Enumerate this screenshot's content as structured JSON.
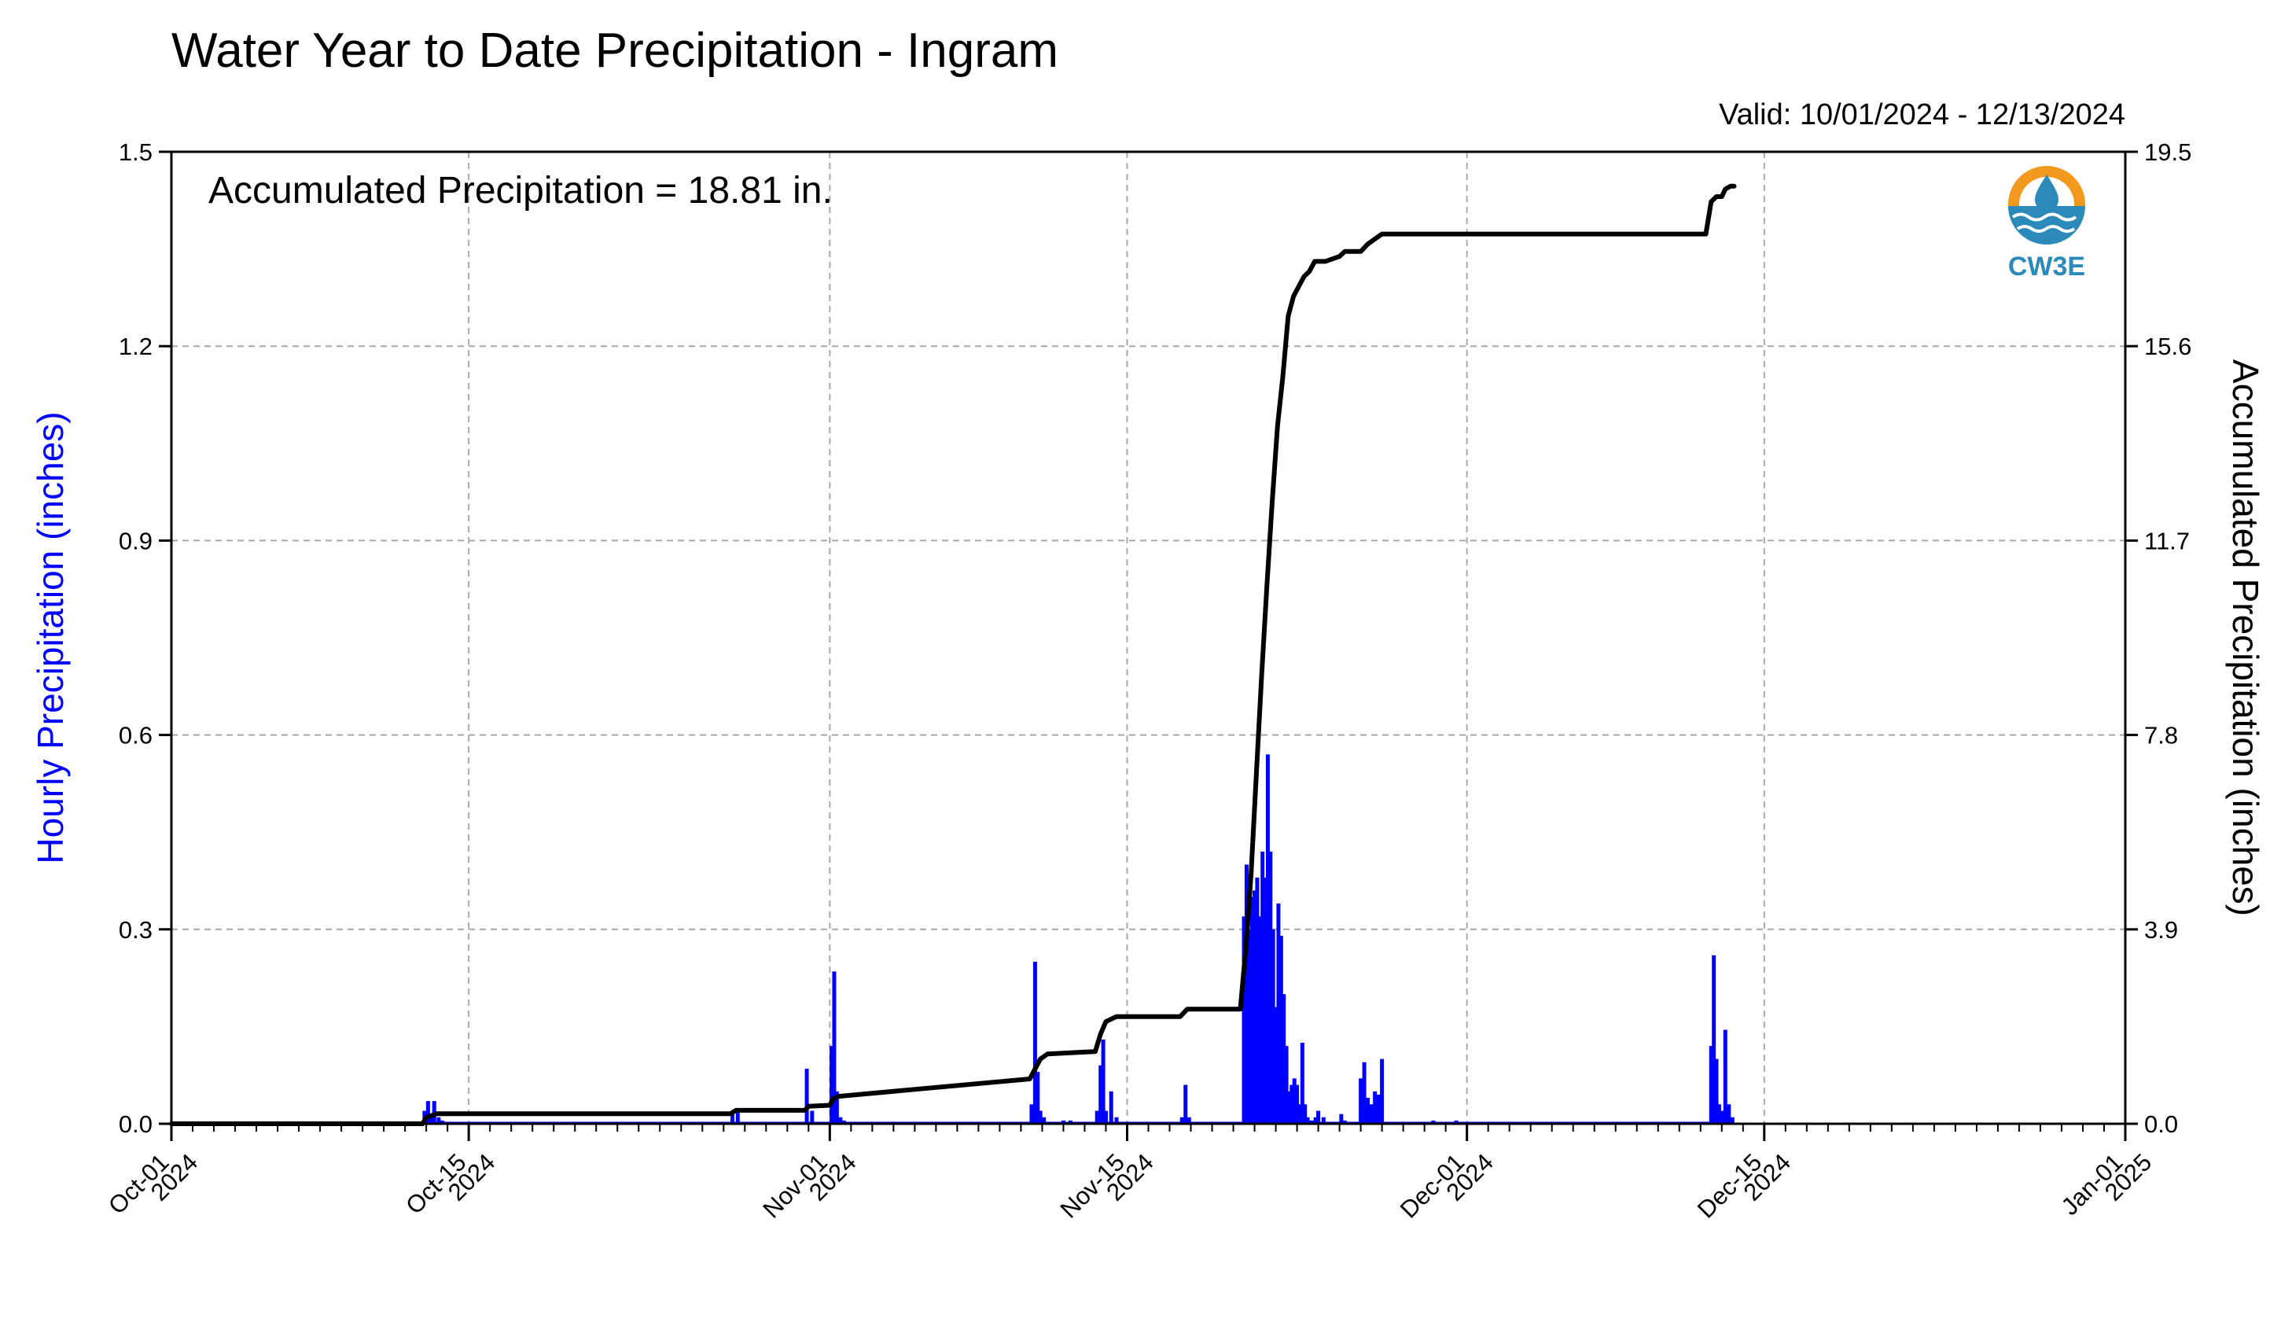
{
  "chart_data": {
    "type": "bar+line",
    "title": "Water Year to Date Precipitation - Ingram",
    "valid_range": "Valid: 10/01/2024 - 12/13/2024",
    "annotation": "Accumulated Precipitation = 18.81 in.",
    "logo_text": "CW3E",
    "ylabel_left": "Hourly Precipitation (inches)",
    "ylabel_right": "Accumulated Precipitation (inches)",
    "ylim_left": [
      0,
      1.5
    ],
    "ylim_right": [
      0,
      19.5
    ],
    "yticks_left": [
      "0.0",
      "0.3",
      "0.6",
      "0.9",
      "1.2",
      "1.5"
    ],
    "yticks_right": [
      "0.0",
      "3.9",
      "7.8",
      "11.7",
      "15.6",
      "19.5"
    ],
    "xlim": [
      "2024-10-01",
      "2025-01-01"
    ],
    "xticks": [
      {
        "date": "2024-10-01",
        "line1": "Oct-01",
        "line2": "2024"
      },
      {
        "date": "2024-10-15",
        "line1": "Oct-15",
        "line2": "2024"
      },
      {
        "date": "2024-11-01",
        "line1": "Nov-01",
        "line2": "2024"
      },
      {
        "date": "2024-11-15",
        "line1": "Nov-15",
        "line2": "2024"
      },
      {
        "date": "2024-12-01",
        "line1": "Dec-01",
        "line2": "2024"
      },
      {
        "date": "2024-12-15",
        "line1": "Dec-15",
        "line2": "2024"
      },
      {
        "date": "2025-01-01",
        "line1": "Jan-01",
        "line2": "2025"
      }
    ],
    "grid": true,
    "colors": {
      "hourly": "#0000ff",
      "accumulated": "#000000",
      "grid": "#a8a8a8",
      "logo_orange": "#f39a1e",
      "logo_blue": "#2b8ab9"
    },
    "series": [
      {
        "name": "Hourly Precipitation (inches)",
        "type": "bar",
        "x": [
          "2024-10-12T22:00",
          "2024-10-13T02:00",
          "2024-10-13T05:00",
          "2024-10-13T09:00",
          "2024-10-13T14:00",
          "2024-10-13T18:00",
          "2024-10-27T10:00",
          "2024-10-27T16:00",
          "2024-10-30T22:00",
          "2024-10-31T04:00",
          "2024-11-01T02:00",
          "2024-11-01T05:00",
          "2024-11-01T08:00",
          "2024-11-01T12:00",
          "2024-11-01T16:00",
          "2024-11-10T12:00",
          "2024-11-10T16:00",
          "2024-11-10T19:00",
          "2024-11-10T22:00",
          "2024-11-11T02:00",
          "2024-11-12T00:00",
          "2024-11-12T08:00",
          "2024-11-13T14:00",
          "2024-11-13T18:00",
          "2024-11-13T21:00",
          "2024-11-14T00:00",
          "2024-11-14T06:00",
          "2024-11-14T12:00",
          "2024-11-17T14:00",
          "2024-11-17T18:00",
          "2024-11-17T22:00",
          "2024-11-20T12:00",
          "2024-11-20T15:00",
          "2024-11-20T18:00",
          "2024-11-20T21:00",
          "2024-11-21T00:00",
          "2024-11-21T03:00",
          "2024-11-21T06:00",
          "2024-11-21T09:00",
          "2024-11-21T12:00",
          "2024-11-21T15:00",
          "2024-11-21T18:00",
          "2024-11-21T21:00",
          "2024-11-22T00:00",
          "2024-11-22T03:00",
          "2024-11-22T06:00",
          "2024-11-22T09:00",
          "2024-11-22T12:00",
          "2024-11-22T15:00",
          "2024-11-22T18:00",
          "2024-11-22T21:00",
          "2024-11-23T00:00",
          "2024-11-23T03:00",
          "2024-11-23T06:00",
          "2024-11-23T09:00",
          "2024-11-23T12:00",
          "2024-11-23T15:00",
          "2024-11-23T18:00",
          "2024-11-23T21:00",
          "2024-11-24T00:00",
          "2024-11-24T06:00",
          "2024-11-25T02:00",
          "2024-11-25T06:00",
          "2024-11-26T00:00",
          "2024-11-26T04:00",
          "2024-11-26T08:00",
          "2024-11-26T12:00",
          "2024-11-26T16:00",
          "2024-11-26T20:00",
          "2024-11-27T00:00",
          "2024-11-29T10:00",
          "2024-11-30T12:00",
          "2024-12-12T12:00",
          "2024-12-12T15:00",
          "2024-12-12T18:00",
          "2024-12-12T21:00",
          "2024-12-13T00:00",
          "2024-12-13T04:00",
          "2024-12-13T08:00",
          "2024-12-13T12:00"
        ],
        "values": [
          0.02,
          0.035,
          0.01,
          0.035,
          0.01,
          0.005,
          0.02,
          0.02,
          0.085,
          0.02,
          0.12,
          0.235,
          0.05,
          0.01,
          0.005,
          0.03,
          0.25,
          0.08,
          0.02,
          0.01,
          0.005,
          0.005,
          0.02,
          0.09,
          0.13,
          0.02,
          0.05,
          0.01,
          0.01,
          0.06,
          0.01,
          0.32,
          0.4,
          0.3,
          0.35,
          0.36,
          0.38,
          0.32,
          0.42,
          0.38,
          0.57,
          0.42,
          0.3,
          0.18,
          0.34,
          0.29,
          0.2,
          0.12,
          0.05,
          0.06,
          0.07,
          0.06,
          0.03,
          0.125,
          0.03,
          0.01,
          0.005,
          0.005,
          0.01,
          0.02,
          0.01,
          0.015,
          0.005,
          0.07,
          0.095,
          0.04,
          0.03,
          0.05,
          0.045,
          0.1,
          0.005,
          0.005,
          0.12,
          0.26,
          0.1,
          0.03,
          0.02,
          0.145,
          0.03,
          0.01
        ]
      },
      {
        "name": "Accumulated Precipitation (inches)",
        "type": "line",
        "x": [
          "2024-10-01T00:00",
          "2024-10-12T20:00",
          "2024-10-13T00:00",
          "2024-10-13T12:00",
          "2024-10-13T20:00",
          "2024-10-27T08:00",
          "2024-10-27T14:00",
          "2024-10-30T20:00",
          "2024-10-31T00:00",
          "2024-11-01T00:00",
          "2024-11-01T04:00",
          "2024-11-01T10:00",
          "2024-11-10T10:00",
          "2024-11-10T16:00",
          "2024-11-10T22:00",
          "2024-11-11T06:00",
          "2024-11-13T12:00",
          "2024-11-13T18:00",
          "2024-11-14T00:00",
          "2024-11-14T12:00",
          "2024-11-17T12:00",
          "2024-11-17T20:00",
          "2024-11-20T08:00",
          "2024-11-20T14:00",
          "2024-11-20T20:00",
          "2024-11-21T02:00",
          "2024-11-21T08:00",
          "2024-11-21T14:00",
          "2024-11-21T20:00",
          "2024-11-22T02:00",
          "2024-11-22T08:00",
          "2024-11-22T14:00",
          "2024-11-22T20:00",
          "2024-11-23T02:00",
          "2024-11-23T08:00",
          "2024-11-23T14:00",
          "2024-11-23T20:00",
          "2024-11-24T08:00",
          "2024-11-25T00:00",
          "2024-11-25T06:00",
          "2024-11-26T00:00",
          "2024-11-26T08:00",
          "2024-11-26T16:00",
          "2024-11-27T00:00",
          "2024-11-27T12:00",
          "2024-12-12T06:00",
          "2024-12-12T12:00",
          "2024-12-12T18:00",
          "2024-12-13T00:00",
          "2024-12-13T04:00",
          "2024-12-13T10:00",
          "2024-12-13T14:00"
        ],
        "values": [
          0.0,
          0.0,
          0.13,
          0.2,
          0.2,
          0.2,
          0.27,
          0.27,
          0.35,
          0.37,
          0.5,
          0.55,
          0.9,
          1.1,
          1.3,
          1.4,
          1.45,
          1.8,
          2.05,
          2.15,
          2.15,
          2.3,
          2.3,
          3.5,
          5.0,
          7.0,
          9.0,
          10.8,
          12.5,
          14.0,
          15.0,
          16.2,
          16.6,
          16.8,
          17.0,
          17.1,
          17.3,
          17.3,
          17.4,
          17.5,
          17.5,
          17.65,
          17.75,
          17.85,
          17.85,
          17.85,
          18.5,
          18.6,
          18.6,
          18.75,
          18.81,
          18.81
        ]
      }
    ]
  }
}
